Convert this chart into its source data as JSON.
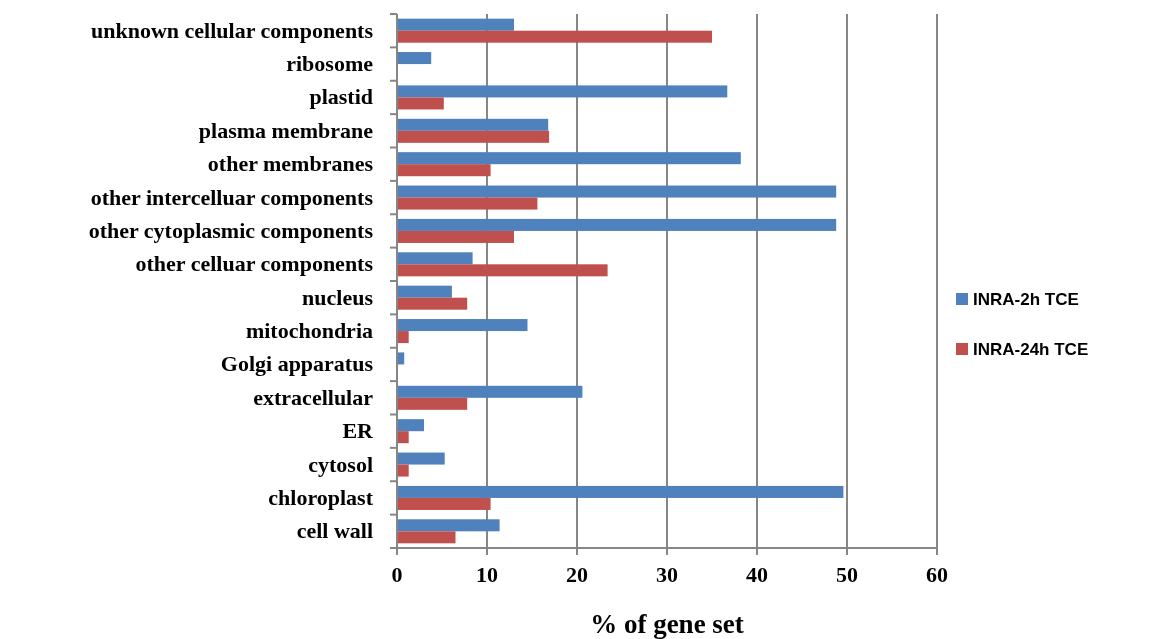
{
  "chart_data": {
    "type": "bar",
    "orientation": "horizontal",
    "xlabel": "% of gene set",
    "categories": [
      "unknown cellular components",
      "ribosome",
      "plastid",
      "plasma membrane",
      "other membranes",
      "other intercelluar components",
      "other cytoplasmic components",
      "other celluar components",
      "nucleus",
      "mitochondria",
      "Golgi apparatus",
      "extracellular",
      "ER",
      "cytosol",
      "chloroplast",
      "cell wall"
    ],
    "series": [
      {
        "name": "INRA-2h TCE",
        "color": "#4f81bd",
        "values": [
          13.0,
          3.8,
          36.7,
          16.8,
          38.2,
          48.8,
          48.8,
          8.4,
          6.1,
          14.5,
          0.8,
          20.6,
          3.0,
          5.3,
          49.6,
          11.4
        ]
      },
      {
        "name": "INRA-24h TCE",
        "color": "#c0504d",
        "values": [
          35.0,
          0,
          5.2,
          16.9,
          10.4,
          15.6,
          13.0,
          23.4,
          7.8,
          1.3,
          0,
          7.8,
          1.3,
          1.3,
          10.4,
          6.5
        ]
      }
    ],
    "xlim": [
      0,
      60
    ],
    "xticks": [
      0,
      10,
      20,
      30,
      40,
      50,
      60
    ],
    "grid": "x",
    "legend": "right"
  }
}
